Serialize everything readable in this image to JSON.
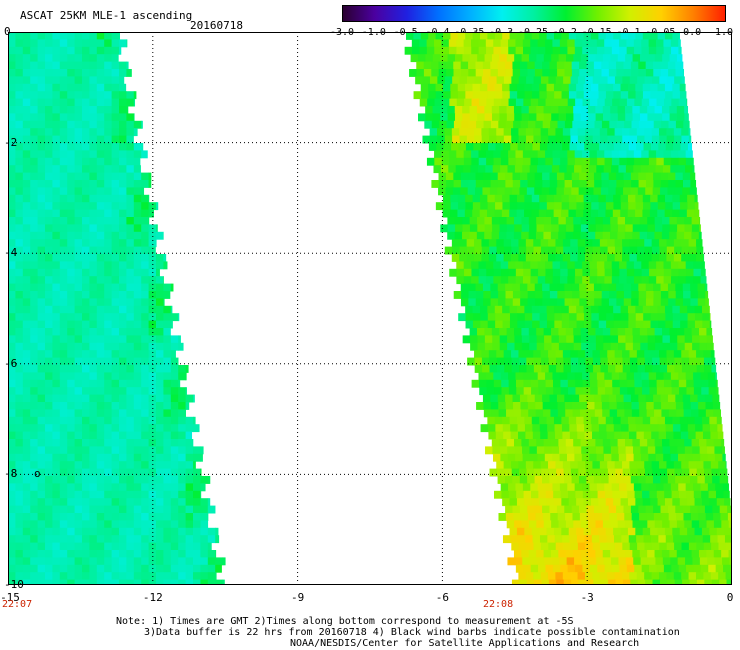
{
  "header": {
    "title": "ASCAT 25KM MLE-1 ascending",
    "date": "20160718"
  },
  "colorbar": {
    "labels": [
      "-3.0",
      "-1.0",
      "-0.5",
      "-0.4",
      "-0.35",
      "-0.3",
      "-0.25",
      "-0.2",
      "-0.15",
      "-0.1",
      "-0.05",
      "0.0",
      "1.0"
    ],
    "colors": [
      "#2a0030",
      "#4b00a0",
      "#2020e0",
      "#0070ff",
      "#00b0ff",
      "#00f0f0",
      "#00f0a0",
      "#00f030",
      "#70f000",
      "#d0f000",
      "#ffd000",
      "#ff8000",
      "#ff2000"
    ]
  },
  "axes": {
    "x_ticks": [
      "-15",
      "-12",
      "-9",
      "-6",
      "-3",
      "0"
    ],
    "y_ticks": [
      "0",
      "-2",
      "-4",
      "-6",
      "-8",
      "-10"
    ],
    "xlim": [
      -15,
      0
    ],
    "ylim": [
      -10,
      0
    ]
  },
  "times": {
    "left": "22:07",
    "right": "22:08"
  },
  "marker": "o",
  "footer": {
    "line1": "Note: 1) Times are GMT 2)Times along bottom correspond to measurement at -5S",
    "line2": "3)Data buffer is 22 hrs from 20160718 4) Black wind barbs indicate possible contamination",
    "line3": "NOAA/NESDIS/Center for Satellite Applications and Research"
  }
}
